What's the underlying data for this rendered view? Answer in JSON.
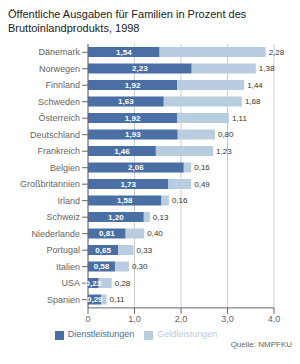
{
  "chart_data": {
    "type": "bar",
    "orientation": "horizontal",
    "stacked": true,
    "title": "Öffentliche Ausgaben für Familien in Prozent des Bruttoinlandprodukts, 1998",
    "categories": [
      "Dänemark",
      "Norwegen",
      "Finnland",
      "Schweden",
      "Österreich",
      "Deutschland",
      "Frankreich",
      "Belgien",
      "Großbritannien",
      "Irland",
      "Schweiz",
      "Niederlande",
      "Portugal",
      "Italien",
      "USA",
      "Spanien"
    ],
    "series": [
      {
        "name": "Dienstleistungen",
        "color": "#4a6fa5",
        "values": [
          1.54,
          2.23,
          1.92,
          1.63,
          1.92,
          1.93,
          1.46,
          2.06,
          1.73,
          1.58,
          1.2,
          0.81,
          0.65,
          0.58,
          0.23,
          0.29
        ],
        "value_labels": [
          "1,54",
          "2,23",
          "1,92",
          "1,63",
          "1,92",
          "1,93",
          "1,46",
          "2,06",
          "1,73",
          "1,58",
          "1,20",
          "0,81",
          "0,65",
          "0,58",
          "0,23",
          "0,29"
        ]
      },
      {
        "name": "Geldleistungen",
        "color": "#b8cde0",
        "values": [
          2.28,
          1.38,
          1.44,
          1.68,
          1.11,
          0.8,
          1.23,
          0.16,
          0.49,
          0.16,
          0.13,
          0.4,
          0.33,
          0.3,
          0.28,
          0.11
        ],
        "value_labels": [
          "2,28",
          "1,38",
          "1,44",
          "1,68",
          "1,11",
          "0,80",
          "1,23",
          "0,16",
          "0,49",
          "0,16",
          "0,13",
          "0,40",
          "0,33",
          "0,30",
          "0,28",
          "0,11"
        ]
      }
    ],
    "xlim": [
      0,
      4.0
    ],
    "xticks": [
      0,
      {
        "value": 1.0,
        "label": "1,0"
      },
      {
        "value": 2.0,
        "label": "2,0"
      },
      {
        "value": 3.0,
        "label": "3,0"
      },
      {
        "value": 4.0,
        "label": "4,0"
      }
    ],
    "grid": true,
    "legend": "bottom",
    "data_labels": true,
    "annotations": [
      "Quelle: NMPFKU"
    ]
  }
}
